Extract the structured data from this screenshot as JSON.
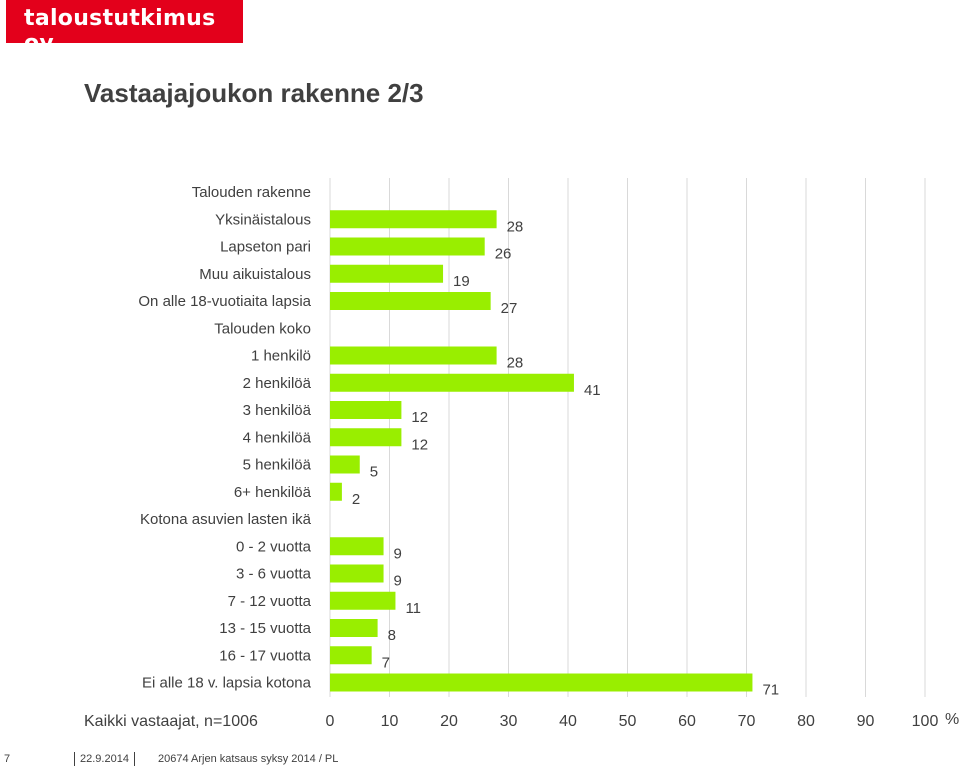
{
  "logo": {
    "text": "taloustutkimus oy"
  },
  "page": {
    "title": "Vastaajajoukon rakenne 2/3"
  },
  "chart_data": {
    "type": "bar",
    "orientation": "horizontal",
    "title": "",
    "xlabel": "Kaikki vastaajat, n=1006",
    "unit_label": "%",
    "xlim": [
      0,
      100
    ],
    "x_ticks": [
      0,
      10,
      20,
      30,
      40,
      50,
      60,
      70,
      80,
      90,
      100
    ],
    "grid": true,
    "bar_color": "#99ee00",
    "rows": [
      {
        "label": "Talouden rakenne",
        "value": null,
        "header": true
      },
      {
        "label": "Yksinäistalous",
        "value": 28
      },
      {
        "label": "Lapseton pari",
        "value": 26
      },
      {
        "label": "Muu aikuistalous",
        "value": 19
      },
      {
        "label": "On alle 18-vuotiaita lapsia",
        "value": 27
      },
      {
        "label": "Talouden koko",
        "value": null,
        "header": true
      },
      {
        "label": "1 henkilö",
        "value": 28
      },
      {
        "label": "2 henkilöä",
        "value": 41
      },
      {
        "label": "3 henkilöä",
        "value": 12
      },
      {
        "label": "4 henkilöä",
        "value": 12
      },
      {
        "label": "5 henkilöä",
        "value": 5
      },
      {
        "label": "6+ henkilöä",
        "value": 2
      },
      {
        "label": "Kotona asuvien lasten ikä",
        "value": null,
        "header": true
      },
      {
        "label": "0 - 2 vuotta",
        "value": 9
      },
      {
        "label": "3 - 6 vuotta",
        "value": 9
      },
      {
        "label": "7 - 12 vuotta",
        "value": 11
      },
      {
        "label": "13 - 15 vuotta",
        "value": 8
      },
      {
        "label": "16 - 17 vuotta",
        "value": 7
      },
      {
        "label": "Ei alle 18 v. lapsia kotona",
        "value": 71
      }
    ]
  },
  "footer": {
    "page_number": "7",
    "date": "22.9.2014",
    "report": "20674 Arjen katsaus syksy 2014 / PL"
  }
}
